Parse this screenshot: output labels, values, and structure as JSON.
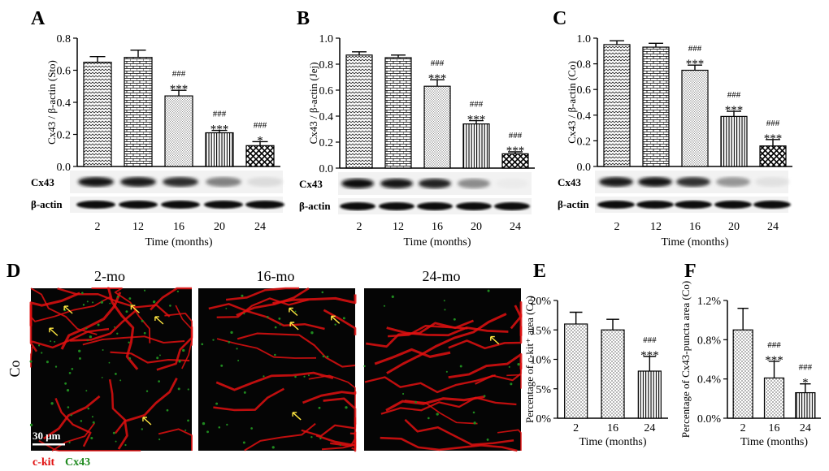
{
  "figure": {
    "panels": [
      {
        "letter": "A",
        "wb_top": "Cx43",
        "wb_bottom": "β-actin"
      },
      {
        "letter": "B",
        "wb_top": "Cx43",
        "wb_bottom": "β-actin"
      },
      {
        "letter": "C",
        "wb_top": "Cx43",
        "wb_bottom": "β-actin"
      },
      {
        "letter": "D"
      },
      {
        "letter": "E"
      },
      {
        "letter": "F"
      }
    ],
    "micro": {
      "row_label": "Co",
      "columns": [
        "2-mo",
        "16-mo",
        "24-mo"
      ],
      "scale_bar": "30 μm",
      "legend_red": "c-kit",
      "legend_green": "Cx43",
      "red_color": "#e01010",
      "green_color": "#1f8a1f"
    }
  },
  "chart_data": [
    {
      "type": "bar",
      "panel": "A",
      "ylabel": "Cx43 / β-actin (Sto)",
      "xlabel": "Time (months)",
      "categories": [
        "2",
        "12",
        "16",
        "20",
        "24"
      ],
      "values": [
        0.65,
        0.68,
        0.44,
        0.21,
        0.13
      ],
      "errors": [
        0.035,
        0.045,
        0.035,
        0.015,
        0.025
      ],
      "annotations": [
        [],
        [],
        [
          "###",
          "***"
        ],
        [
          "###",
          "***"
        ],
        [
          "###",
          "*"
        ]
      ],
      "ylim": [
        0,
        0.8
      ],
      "yticks": [
        0.0,
        0.2,
        0.4,
        0.6,
        0.8
      ],
      "ytick_labels": [
        "0.0",
        "0.2",
        "0.4",
        "0.6",
        "0.8"
      ]
    },
    {
      "type": "bar",
      "panel": "B",
      "ylabel": "Cx43 / β-actin (Jej)",
      "xlabel": "Time (months)",
      "categories": [
        "2",
        "12",
        "16",
        "20",
        "24"
      ],
      "values": [
        0.87,
        0.85,
        0.63,
        0.34,
        0.11
      ],
      "errors": [
        0.025,
        0.02,
        0.05,
        0.025,
        0.015
      ],
      "annotations": [
        [],
        [],
        [
          "###",
          "***"
        ],
        [
          "###",
          "***"
        ],
        [
          "###",
          "***"
        ]
      ],
      "ylim": [
        0,
        1.0
      ],
      "yticks": [
        0.0,
        0.2,
        0.4,
        0.6,
        0.8,
        1.0
      ],
      "ytick_labels": [
        "0.0",
        "0.2",
        "0.4",
        "0.6",
        "0.8",
        "1.0"
      ]
    },
    {
      "type": "bar",
      "panel": "C",
      "ylabel": "Cx43 / β-actin (Co)",
      "xlabel": "Time (months)",
      "categories": [
        "2",
        "12",
        "16",
        "20",
        "24"
      ],
      "values": [
        0.95,
        0.93,
        0.75,
        0.39,
        0.16
      ],
      "errors": [
        0.03,
        0.03,
        0.04,
        0.04,
        0.05
      ],
      "annotations": [
        [],
        [],
        [
          "###",
          "***"
        ],
        [
          "###",
          "***"
        ],
        [
          "###",
          "***"
        ]
      ],
      "ylim": [
        0,
        1.0
      ],
      "yticks": [
        0.0,
        0.2,
        0.4,
        0.6,
        0.8,
        1.0
      ],
      "ytick_labels": [
        "0.0",
        "0.2",
        "0.4",
        "0.6",
        "0.8",
        "1.0"
      ]
    },
    {
      "type": "bar",
      "panel": "E",
      "ylabel": "Percentage of c-kit⁺ area (Co)",
      "xlabel": "Time (months)",
      "categories": [
        "2",
        "16",
        "24"
      ],
      "values": [
        16,
        15,
        8
      ],
      "errors": [
        2,
        1.8,
        2.5
      ],
      "annotations": [
        [],
        [],
        [
          "###",
          "***"
        ]
      ],
      "ylim": [
        0,
        20
      ],
      "yticks": [
        0,
        5,
        10,
        15,
        20
      ],
      "ytick_labels": [
        "0%",
        "5%",
        "10%",
        "15%",
        "20%"
      ]
    },
    {
      "type": "bar",
      "panel": "F",
      "ylabel": "Percentage of Cx43-puncta area (Co)",
      "xlabel": "Time (months)",
      "categories": [
        "2",
        "16",
        "24"
      ],
      "values": [
        0.9,
        0.41,
        0.26
      ],
      "errors": [
        0.22,
        0.17,
        0.09
      ],
      "annotations": [
        [],
        [
          "###",
          "***"
        ],
        [
          "###",
          "*"
        ]
      ],
      "ylim": [
        0,
        1.2
      ],
      "yticks": [
        0,
        0.4,
        0.8,
        1.2
      ],
      "ytick_labels": [
        "0.0%",
        "0.4%",
        "0.8%",
        "1.2%"
      ]
    }
  ]
}
